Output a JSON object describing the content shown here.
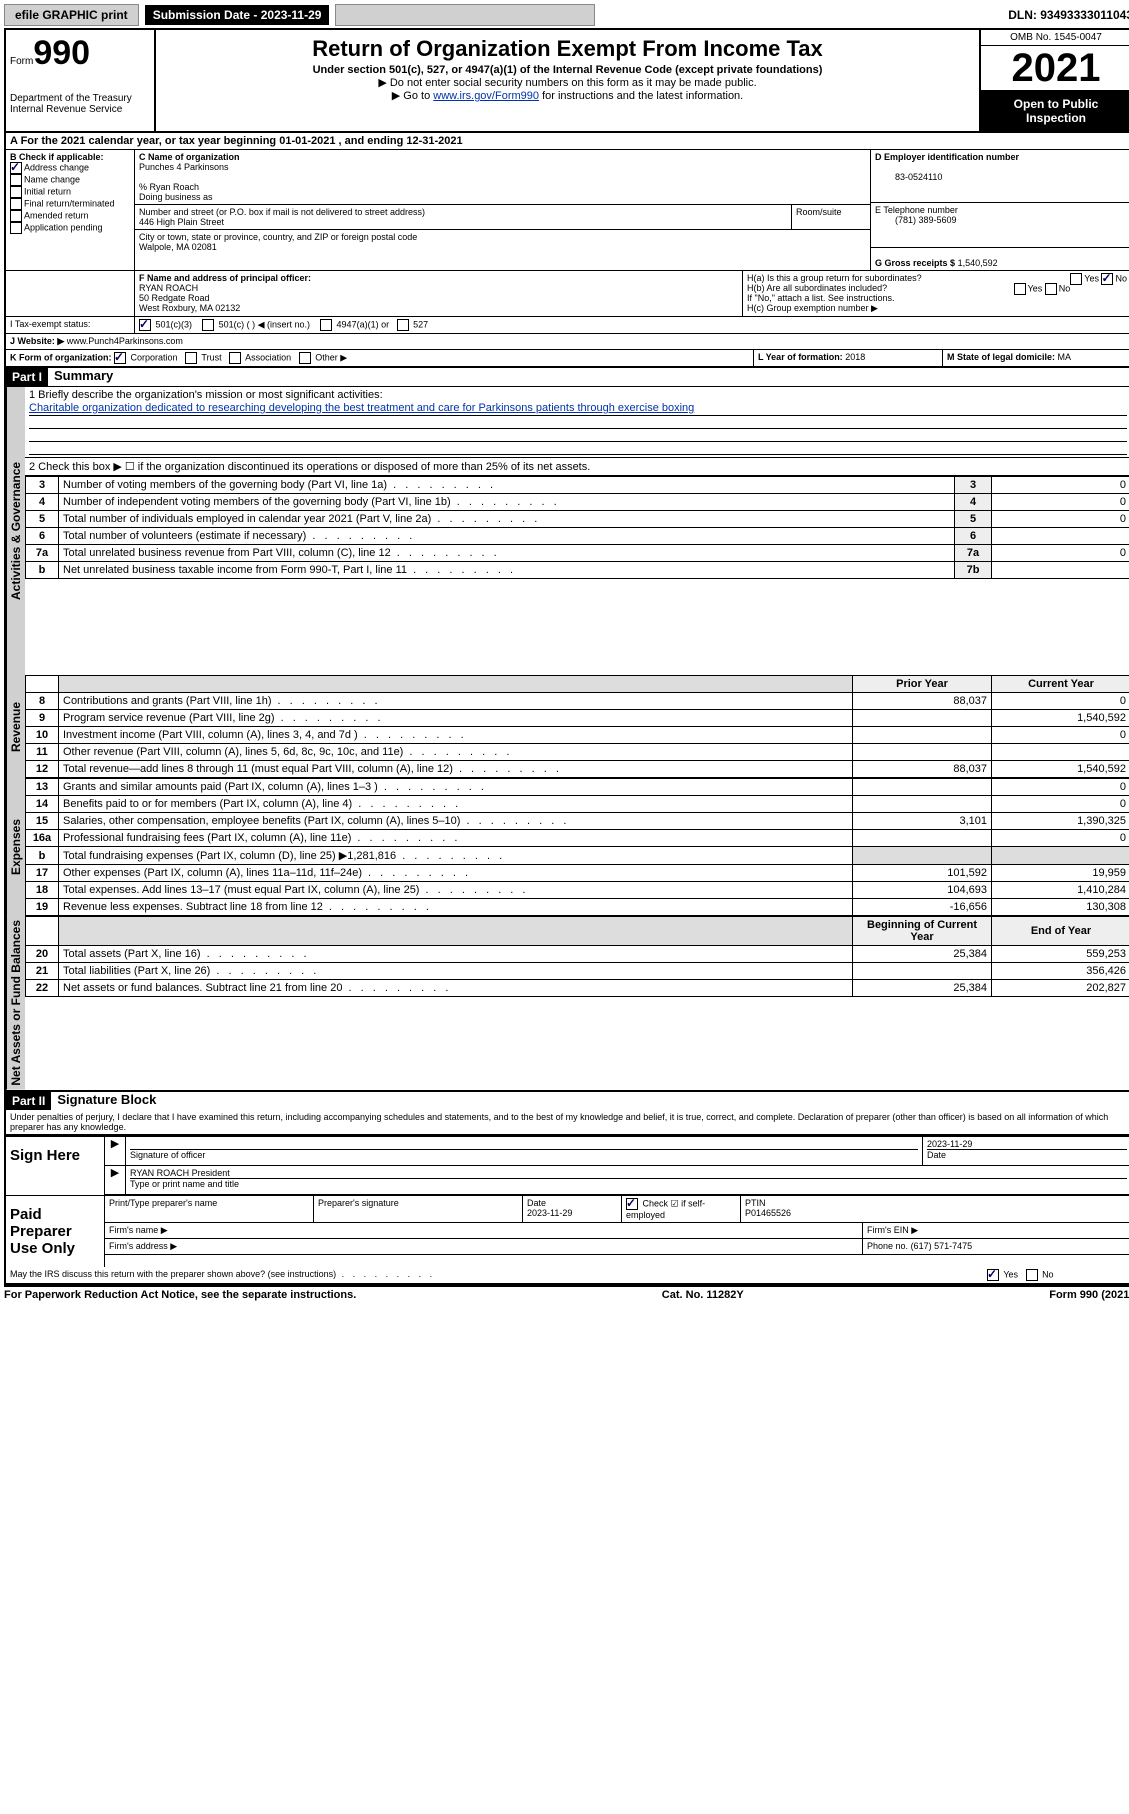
{
  "topbar": {
    "efile": "efile GRAPHIC print",
    "sub_label": "Submission Date -",
    "sub_date": "2023-11-29",
    "dln": "DLN: 93493333011043"
  },
  "header": {
    "form_word": "Form",
    "form_num": "990",
    "dept": "Department of the Treasury",
    "irs": "Internal Revenue Service",
    "title": "Return of Organization Exempt From Income Tax",
    "subtitle": "Under section 501(c), 527, or 4947(a)(1) of the Internal Revenue Code (except private foundations)",
    "note1": "▶ Do not enter social security numbers on this form as it may be made public.",
    "note2_pre": "▶ Go to ",
    "note2_link": "www.irs.gov/Form990",
    "note2_post": " for instructions and the latest information.",
    "omb": "OMB No. 1545-0047",
    "year": "2021",
    "inspect": "Open to Public Inspection"
  },
  "period": {
    "a": "A For the 2021 calendar year, or tax year beginning ",
    "begin": "01-01-2021",
    "mid": " , and ending ",
    "end": "12-31-2021"
  },
  "checkB": {
    "title": "B Check if applicable:",
    "addr": "Address change",
    "name": "Name change",
    "initial": "Initial return",
    "final": "Final return/terminated",
    "amended": "Amended return",
    "app": "Application pending"
  },
  "boxC": {
    "label": "C Name of organization",
    "org": "Punches 4 Parkinsons",
    "care_label": "% Ryan Roach",
    "dba": "Doing business as",
    "addr_label": "Number and street (or P.O. box if mail is not delivered to street address)",
    "room": "Room/suite",
    "addr": "446 High Plain Street",
    "city_label": "City or town, state or province, country, and ZIP or foreign postal code",
    "city": "Walpole, MA  02081"
  },
  "boxD": {
    "label": "D Employer identification number",
    "val": "83-0524110"
  },
  "boxE": {
    "label": "E Telephone number",
    "val": "(781) 389-5609"
  },
  "boxG": {
    "label": "G Gross receipts $",
    "val": "1,540,592"
  },
  "boxF": {
    "label": "F Name and address of principal officer:",
    "name": "RYAN ROACH",
    "addr1": "50 Redgate Road",
    "addr2": "West Roxbury, MA  02132"
  },
  "boxH": {
    "ha": "H(a)  Is this a group return for subordinates?",
    "hb": "H(b)  Are all subordinates included?",
    "hnote": "If \"No,\" attach a list. See instructions.",
    "hc": "H(c)  Group exemption number ▶",
    "yes": "Yes",
    "no": "No"
  },
  "lineI": {
    "label": "I   Tax-exempt status:",
    "c3": "501(c)(3)",
    "c": "501(c) (  ) ◀ (insert no.)",
    "a1": "4947(a)(1) or",
    "s527": "527"
  },
  "lineJ": {
    "label": "J   Website: ▶",
    "val": "www.Punch4Parkinsons.com"
  },
  "lineK": {
    "label": "K Form of organization:",
    "corp": "Corporation",
    "trust": "Trust",
    "assoc": "Association",
    "other": "Other ▶"
  },
  "lineL": {
    "label": "L Year of formation:",
    "val": "2018"
  },
  "lineM": {
    "label": "M State of legal domicile:",
    "val": "MA"
  },
  "part1": {
    "hdr": "Part I",
    "title": "Summary"
  },
  "vlabels": {
    "gov": "Activities & Governance",
    "rev": "Revenue",
    "exp": "Expenses",
    "net": "Net Assets or Fund Balances"
  },
  "line1": {
    "label": "1   Briefly describe the organization's mission or most significant activities:",
    "text": "Charitable organization dedicated to researching developing the best treatment and care for Parkinsons patients through exercise boxing"
  },
  "line2": "2   Check this box ▶ ☐  if the organization discontinued its operations or disposed of more than 25% of its net assets.",
  "gov_lines": [
    {
      "n": "3",
      "label": "Number of voting members of the governing body (Part VI, line 1a)",
      "box": "3",
      "val": "0"
    },
    {
      "n": "4",
      "label": "Number of independent voting members of the governing body (Part VI, line 1b)",
      "box": "4",
      "val": "0"
    },
    {
      "n": "5",
      "label": "Total number of individuals employed in calendar year 2021 (Part V, line 2a)",
      "box": "5",
      "val": "0"
    },
    {
      "n": "6",
      "label": "Total number of volunteers (estimate if necessary)",
      "box": "6",
      "val": ""
    },
    {
      "n": "7a",
      "label": "Total unrelated business revenue from Part VIII, column (C), line 12",
      "box": "7a",
      "val": "0"
    },
    {
      "n": "b",
      "label": "Net unrelated business taxable income from Form 990-T, Part I, line 11",
      "box": "7b",
      "val": ""
    }
  ],
  "yearhdr": {
    "prior": "Prior Year",
    "current": "Current Year"
  },
  "rev_lines": [
    {
      "n": "8",
      "label": "Contributions and grants (Part VIII, line 1h)",
      "p": "88,037",
      "c": "0"
    },
    {
      "n": "9",
      "label": "Program service revenue (Part VIII, line 2g)",
      "p": "",
      "c": "1,540,592"
    },
    {
      "n": "10",
      "label": "Investment income (Part VIII, column (A), lines 3, 4, and 7d )",
      "p": "",
      "c": "0"
    },
    {
      "n": "11",
      "label": "Other revenue (Part VIII, column (A), lines 5, 6d, 8c, 9c, 10c, and 11e)",
      "p": "",
      "c": ""
    },
    {
      "n": "12",
      "label": "Total revenue—add lines 8 through 11 (must equal Part VIII, column (A), line 12)",
      "p": "88,037",
      "c": "1,540,592"
    }
  ],
  "exp_lines": [
    {
      "n": "13",
      "label": "Grants and similar amounts paid (Part IX, column (A), lines 1–3 )",
      "p": "",
      "c": "0"
    },
    {
      "n": "14",
      "label": "Benefits paid to or for members (Part IX, column (A), line 4)",
      "p": "",
      "c": "0"
    },
    {
      "n": "15",
      "label": "Salaries, other compensation, employee benefits (Part IX, column (A), lines 5–10)",
      "p": "3,101",
      "c": "1,390,325"
    },
    {
      "n": "16a",
      "label": "Professional fundraising fees (Part IX, column (A), line 11e)",
      "p": "",
      "c": "0"
    },
    {
      "n": "b",
      "label": "Total fundraising expenses (Part IX, column (D), line 25) ▶1,281,816",
      "p": "shaded",
      "c": "shaded"
    },
    {
      "n": "17",
      "label": "Other expenses (Part IX, column (A), lines 11a–11d, 11f–24e)",
      "p": "101,592",
      "c": "19,959"
    },
    {
      "n": "18",
      "label": "Total expenses. Add lines 13–17 (must equal Part IX, column (A), line 25)",
      "p": "104,693",
      "c": "1,410,284"
    },
    {
      "n": "19",
      "label": "Revenue less expenses. Subtract line 18 from line 12",
      "p": "-16,656",
      "c": "130,308"
    }
  ],
  "nethdr": {
    "begin": "Beginning of Current Year",
    "end": "End of Year"
  },
  "net_lines": [
    {
      "n": "20",
      "label": "Total assets (Part X, line 16)",
      "p": "25,384",
      "c": "559,253"
    },
    {
      "n": "21",
      "label": "Total liabilities (Part X, line 26)",
      "p": "",
      "c": "356,426"
    },
    {
      "n": "22",
      "label": "Net assets or fund balances. Subtract line 21 from line 20",
      "p": "25,384",
      "c": "202,827"
    }
  ],
  "part2": {
    "hdr": "Part II",
    "title": "Signature Block"
  },
  "perjury": "Under penalties of perjury, I declare that I have examined this return, including accompanying schedules and statements, and to the best of my knowledge and belief, it is true, correct, and complete. Declaration of preparer (other than officer) is based on all information of which preparer has any knowledge.",
  "sign": {
    "here": "Sign Here",
    "sig_officer": "Signature of officer",
    "date": "Date",
    "date_val": "2023-11-29",
    "name": "RYAN ROACH  President",
    "type_label": "Type or print name and title"
  },
  "paid": {
    "title": "Paid Preparer Use Only",
    "print": "Print/Type preparer's name",
    "sig": "Preparer's signature",
    "date": "Date",
    "date_val": "2023-11-29",
    "check": "Check ☑ if self-employed",
    "ptin": "PTIN",
    "ptin_val": "P01465526",
    "firm_name": "Firm's name  ▶",
    "firm_ein": "Firm's EIN ▶",
    "firm_addr": "Firm's address ▶",
    "phone": "Phone no.",
    "phone_val": "(617) 571-7475"
  },
  "may_irs": "May the IRS discuss this return with the preparer shown above? (see instructions)",
  "footer": {
    "left": "For Paperwork Reduction Act Notice, see the separate instructions.",
    "mid": "Cat. No. 11282Y",
    "right": "Form 990 (2021)"
  }
}
